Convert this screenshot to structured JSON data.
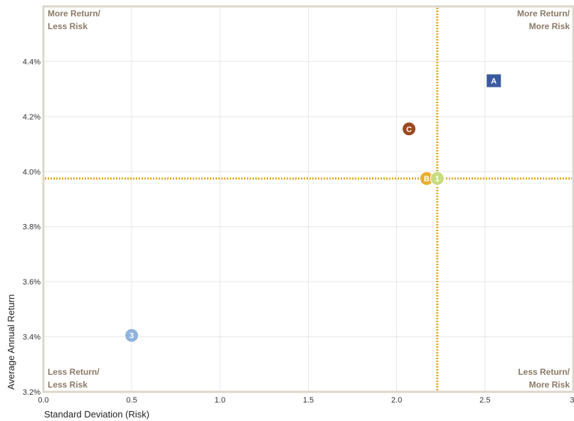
{
  "chart_data": {
    "type": "scatter",
    "xlabel": "Standard Deviation (Risk)",
    "ylabel": "Average Annual Return",
    "xlim": [
      0.0,
      3.0
    ],
    "ylim": [
      3.2,
      4.6
    ],
    "x_ticks": [
      0.0,
      0.5,
      1.0,
      1.5,
      2.0,
      2.5,
      3.0
    ],
    "x_tick_labels": [
      "0.0",
      "0.5",
      "1.0",
      "1.5",
      "2.0",
      "2.5",
      "3."
    ],
    "y_ticks": [
      3.2,
      3.4,
      3.6,
      3.8,
      4.0,
      4.2,
      4.4
    ],
    "y_tick_labels": [
      "3.2%",
      "3.4%",
      "3.6%",
      "3.8%",
      "4.0%",
      "4.2%",
      "4.4%"
    ],
    "grid": true,
    "reference_lines": {
      "x": 2.23,
      "y": 3.975,
      "color": "#e0a820"
    },
    "quadrant_labels": {
      "top_left": [
        "More Return/",
        "Less Risk"
      ],
      "top_right": [
        "More Return/",
        "More Risk"
      ],
      "bottom_left": [
        "Less Return/",
        "Less Risk"
      ],
      "bottom_right": [
        "Less Return/",
        "More Risk"
      ]
    },
    "points": [
      {
        "label": "A",
        "x": 2.55,
        "y": 4.33,
        "shape": "square",
        "color": "#3a5aa0"
      },
      {
        "label": "C",
        "x": 2.07,
        "y": 4.155,
        "shape": "circle",
        "color": "#9a4a22"
      },
      {
        "label": "B",
        "x": 2.17,
        "y": 3.975,
        "shape": "circle",
        "color": "#e8b030"
      },
      {
        "label": "1",
        "x": 2.23,
        "y": 3.975,
        "shape": "circle",
        "color": "#c8dc80"
      },
      {
        "label": "3",
        "x": 0.5,
        "y": 3.405,
        "shape": "circle",
        "color": "#90b4dc"
      }
    ]
  }
}
